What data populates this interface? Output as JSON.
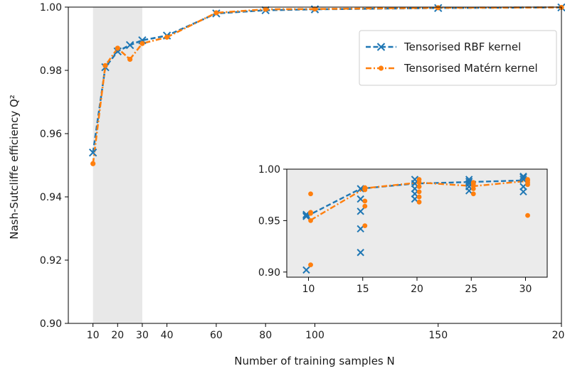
{
  "chart_data": [
    {
      "type": "line",
      "xlabel": "Number of training samples N",
      "ylabel": "Nash-Sutcliffe efficiency Q²",
      "xlim": [
        0,
        200
      ],
      "ylim": [
        0.9,
        1.0
      ],
      "xticks": [
        10,
        20,
        30,
        40,
        60,
        80,
        100,
        150,
        200
      ],
      "yticks": [
        0.9,
        0.92,
        0.94,
        0.96,
        0.98,
        1.0
      ],
      "xtick_labels": [
        "10",
        "20",
        "30",
        "40",
        "60",
        "80",
        "100",
        "150",
        "200"
      ],
      "ytick_labels": [
        "0.90",
        "0.92",
        "0.94",
        "0.96",
        "0.98",
        "1.00"
      ],
      "grid": false,
      "legend_position": "top-right",
      "shaded_region": {
        "x": [
          10,
          30
        ],
        "y": [
          0.9,
          1.0
        ],
        "color": "#e8e8e8"
      },
      "series": [
        {
          "name": "Tensorised RBF kernel",
          "color": "#1f77b4",
          "marker": "x",
          "linestyle": "dashed",
          "x": [
            10,
            15,
            20,
            25,
            30,
            40,
            60,
            80,
            100,
            150,
            200
          ],
          "y": [
            0.954,
            0.981,
            0.986,
            0.988,
            0.9895,
            0.991,
            0.998,
            0.999,
            0.9993,
            0.9997,
            0.9999
          ]
        },
        {
          "name": "Tensorised Matérn kernel",
          "color": "#ff7f0e",
          "marker": "o",
          "linestyle": "dashdot",
          "x": [
            10,
            15,
            20,
            25,
            30,
            40,
            60,
            80,
            100,
            150,
            200
          ],
          "y": [
            0.9505,
            0.9815,
            0.987,
            0.9835,
            0.9885,
            0.9905,
            0.9982,
            0.9993,
            0.9994,
            0.9998,
            0.9999
          ]
        }
      ]
    },
    {
      "type": "scatter",
      "note": "inset",
      "xlim": [
        8,
        32
      ],
      "ylim": [
        0.895,
        1.0
      ],
      "xticks": [
        10,
        15,
        20,
        25,
        30
      ],
      "yticks": [
        0.9,
        0.95,
        1.0
      ],
      "xtick_labels": [
        "10",
        "15",
        "20",
        "25",
        "30"
      ],
      "ytick_labels": [
        "0.90",
        "0.95",
        "1.00"
      ],
      "background": "#ebebeb",
      "series": [
        {
          "name": "Tensorised RBF kernel",
          "color": "#1f77b4",
          "marker": "x",
          "linestyle": "dashed",
          "mean_x": [
            9.8,
            14.8,
            19.8,
            24.8,
            29.8
          ],
          "mean_y": [
            0.954,
            0.981,
            0.986,
            0.9875,
            0.989
          ],
          "points": [
            {
              "x": 9.8,
              "y": [
                0.902,
                0.954,
                0.955,
                0.955,
                0.956
              ]
            },
            {
              "x": 14.8,
              "y": [
                0.919,
                0.942,
                0.959,
                0.971,
                0.981
              ]
            },
            {
              "x": 19.8,
              "y": [
                0.971,
                0.976,
                0.981,
                0.986,
                0.99
              ]
            },
            {
              "x": 24.8,
              "y": [
                0.979,
                0.983,
                0.986,
                0.988,
                0.99
              ]
            },
            {
              "x": 29.8,
              "y": [
                0.978,
                0.983,
                0.99,
                0.992,
                0.993
              ]
            }
          ]
        },
        {
          "name": "Tensorised Matérn kernel",
          "color": "#ff7f0e",
          "marker": "o",
          "linestyle": "dashdot",
          "mean_x": [
            10.2,
            15.2,
            20.2,
            25.2,
            30.2
          ],
          "mean_y": [
            0.9505,
            0.9815,
            0.987,
            0.9835,
            0.9885
          ],
          "points": [
            {
              "x": 10.2,
              "y": [
                0.907,
                0.95,
                0.957,
                0.958,
                0.976
              ]
            },
            {
              "x": 15.2,
              "y": [
                0.945,
                0.964,
                0.969,
                0.98,
                0.982
              ]
            },
            {
              "x": 20.2,
              "y": [
                0.968,
                0.973,
                0.978,
                0.983,
                0.987,
                0.99
              ]
            },
            {
              "x": 25.2,
              "y": [
                0.976,
                0.981,
                0.984,
                0.986,
                0.987
              ]
            },
            {
              "x": 30.2,
              "y": [
                0.955,
                0.985,
                0.987,
                0.989,
                0.99
              ]
            }
          ]
        }
      ]
    }
  ]
}
